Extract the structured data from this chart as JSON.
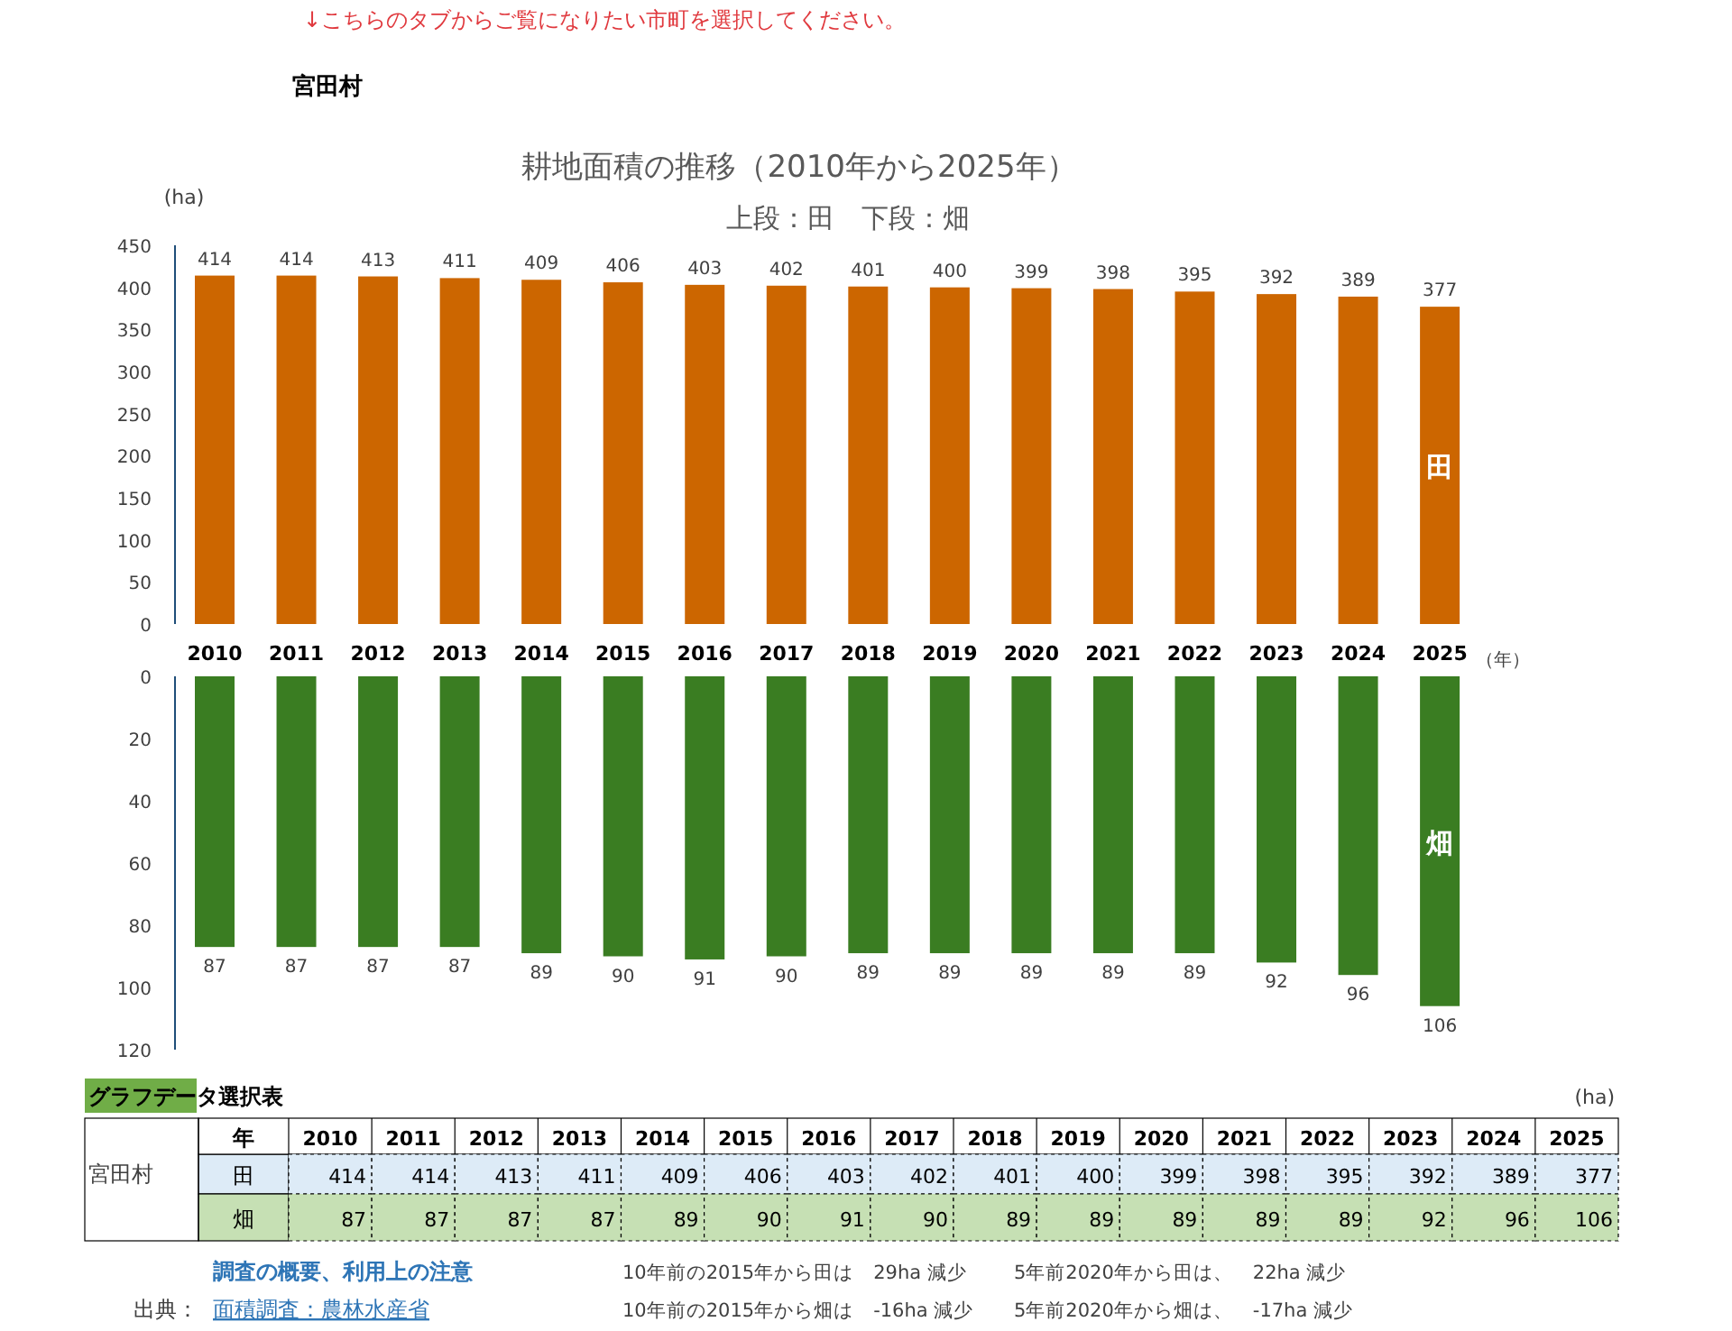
{
  "chart_data": [
    {
      "type": "bar",
      "title": "耕地面積の推移（2010年から2025年）",
      "subtitle": "上段：田　下段：畑",
      "ylabel": "(ha)",
      "xlabel": "（年）",
      "categories": [
        "2010",
        "2011",
        "2012",
        "2013",
        "2014",
        "2015",
        "2016",
        "2017",
        "2018",
        "2019",
        "2020",
        "2021",
        "2022",
        "2023",
        "2024",
        "2025"
      ],
      "series": [
        {
          "name": "田",
          "color": "#cc6600",
          "values": [
            414,
            414,
            413,
            411,
            409,
            406,
            403,
            402,
            401,
            400,
            399,
            398,
            395,
            392,
            389,
            377
          ]
        }
      ],
      "ylim": [
        0,
        450
      ],
      "yticks": [
        0,
        50,
        100,
        150,
        200,
        250,
        300,
        350,
        400,
        450
      ],
      "data_labels": true,
      "annotations": [
        "↓こちらのタブからご覧になりたい市町を選択してください。",
        "宮田村"
      ]
    },
    {
      "type": "bar",
      "tick_labels": "y",
      "categories": [
        "2010",
        "2011",
        "2012",
        "2013",
        "2014",
        "2015",
        "2016",
        "2017",
        "2018",
        "2019",
        "2020",
        "2021",
        "2022",
        "2023",
        "2024",
        "2025"
      ],
      "series": [
        {
          "name": "畑",
          "color": "#3a7d22",
          "values": [
            87,
            87,
            87,
            87,
            89,
            90,
            91,
            90,
            89,
            89,
            89,
            89,
            89,
            92,
            96,
            106
          ]
        }
      ],
      "ylim": [
        120,
        0
      ],
      "yticks": [
        0,
        20,
        40,
        60,
        80,
        100,
        120
      ],
      "data_labels": true
    },
    {
      "type": "heatmap",
      "data_labels": true,
      "categories": [
        "2010",
        "2011",
        "2012",
        "2013",
        "2014",
        "2015",
        "2016",
        "2017",
        "2018",
        "2019",
        "2020",
        "2021",
        "2022",
        "2023",
        "2024",
        "2025"
      ],
      "y_categories": [
        "田",
        "畑"
      ],
      "colors": [
        "#ddebf7",
        "#c6e0b4"
      ],
      "cells": [
        [
          414,
          414,
          413,
          411,
          409,
          406,
          403,
          402,
          401,
          400,
          399,
          398,
          395,
          392,
          389,
          377
        ],
        [
          87,
          87,
          87,
          87,
          89,
          90,
          91,
          90,
          89,
          89,
          89,
          89,
          89,
          92,
          96,
          106
        ]
      ],
      "annotations": [
        "グラフデータ選択表",
        "(ha)",
        "年",
        "宮田村",
        "調査の概要、利用上の注意",
        "出典：",
        "面積調査：農林水産省",
        "10年前の2015年から田は　29ha 減少",
        "5年前2020年から田は、　22ha 減少",
        "10年前の2015年から畑は　-16ha 減少",
        "5年前2020年から畑は、　-17ha 減少"
      ]
    }
  ]
}
